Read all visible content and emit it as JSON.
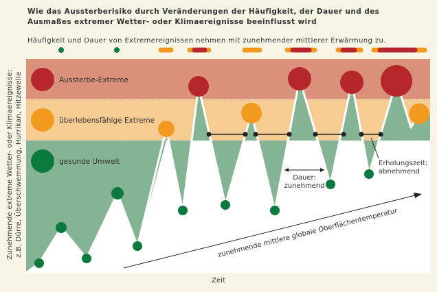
{
  "title": "Wie das Aussterberisiko durch Veränderungen der Häufigkeit, der Dauer und des Ausmaßes extremer Wetter- oder Klimaereignisse beeinflusst wird",
  "subtitle": "Häufigkeit und Dauer von Extremereignissen nehmen mit zunehmender mittlerer Erwärmung zu.",
  "zones": [
    {
      "label": "Aussterbe-Extreme",
      "color": "#d9917a",
      "marker_color": "#b5272b"
    },
    {
      "label": "überlebensfähige Extreme",
      "color": "#f7cc93",
      "marker_color": "#f29a20"
    },
    {
      "label": "gesunde Umwelt",
      "color": "#ffffff",
      "marker_color": "#0b7a3e"
    }
  ],
  "y_axis_label_line1": "Zunehmende extreme Wetter- oder Klimaereignisse:",
  "y_axis_label_line2": "z.B. Dürre, Überschwemmung, Hurrikan, Hitzewelle",
  "x_axis_label": "Zeit",
  "arrow_label": "zunehmende mittlere globale Oberflächentemperatur",
  "annotation_duration": "Dauer: zunehmend",
  "annotation_duration_line1": "Dauer:",
  "annotation_duration_line2": "zunehmend",
  "annotation_recovery_line1": "Erholungszeit:",
  "annotation_recovery_line2": "abnehmend",
  "colors": {
    "fill_green": "#84b493",
    "marker_green": "#0b7a3e",
    "marker_orange": "#f29a20",
    "marker_red": "#b5272b",
    "line": "#ffffff",
    "bar_orange": "#f29a20",
    "bar_red": "#b5272b"
  }
}
